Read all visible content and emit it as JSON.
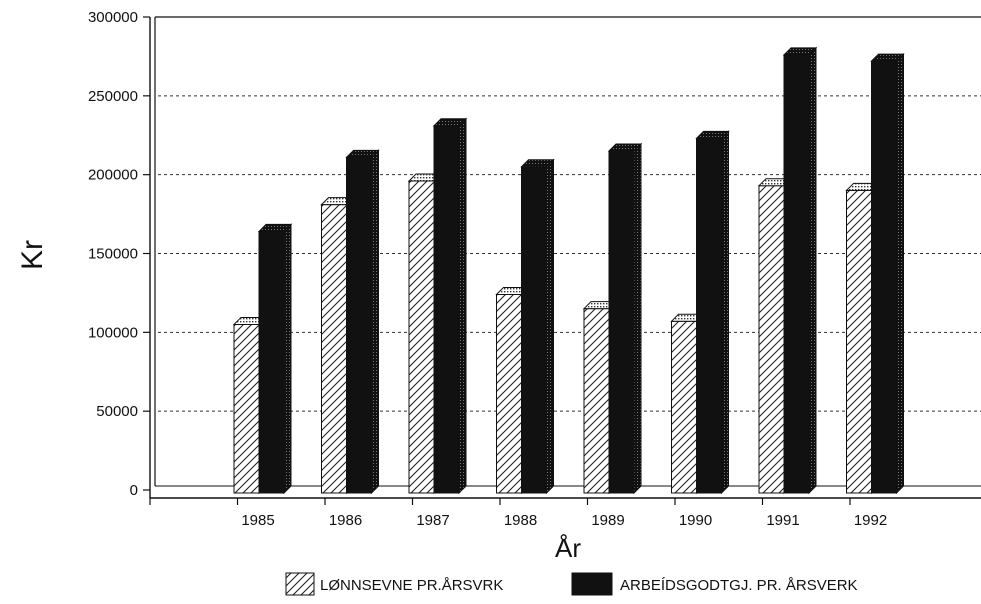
{
  "chart_data": {
    "type": "bar",
    "categories": [
      "1985",
      "1986",
      "1987",
      "1988",
      "1989",
      "1990",
      "1991",
      "1992"
    ],
    "series": [
      {
        "name": "LØNNSEVNE PR.ÅRSVRK",
        "values": [
          105000,
          181000,
          196000,
          124000,
          115000,
          107000,
          193000,
          190000
        ],
        "fill": "hatched"
      },
      {
        "name": "ARBEÍDSGODTGJ. PR. ÅRSVERK",
        "values": [
          164000,
          211000,
          231000,
          205000,
          215000,
          223000,
          276000,
          272000
        ],
        "fill": "solid"
      }
    ],
    "xlabel": "År",
    "ylabel": "Kr",
    "ylim": [
      0,
      300000
    ],
    "yticks": [
      "0",
      "50000",
      "100000",
      "150000",
      "200000",
      "250000",
      "300000"
    ],
    "grid": "horizontal dashed",
    "legend_position": "bottom",
    "colors": {
      "solid": "#111111",
      "hatch": "#222222",
      "background": "#ffffff"
    }
  }
}
